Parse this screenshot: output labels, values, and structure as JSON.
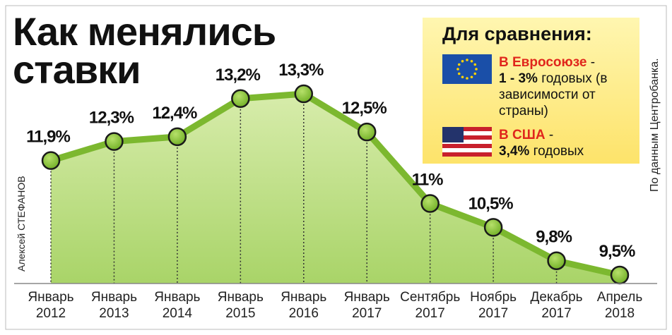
{
  "chart_data": {
    "type": "line",
    "title": "Как менялись ставки",
    "categories": [
      "Январь 2012",
      "Январь 2013",
      "Январь 2014",
      "Январь 2015",
      "Январь 2016",
      "Январь 2017",
      "Сентябрь 2017",
      "Ноябрь 2017",
      "Декабрь 2017",
      "Апрель 2018"
    ],
    "values": [
      11.9,
      12.3,
      12.4,
      13.2,
      13.3,
      12.5,
      11,
      10.5,
      9.8,
      9.5
    ],
    "value_labels": [
      "11,9%",
      "12,3%",
      "12,4%",
      "13,2%",
      "13,3%",
      "12,5%",
      "11%",
      "10,5%",
      "9,8%",
      "9,5%"
    ],
    "color": "#7cb82f"
  },
  "sidebar": {
    "title": "Для сравнения:",
    "items": [
      {
        "region": "В Евросоюзе",
        "dash": "-",
        "rate": "1 - 3%",
        "note": "годовых (в зависимости от страны)"
      },
      {
        "region": "В США",
        "dash": "-",
        "rate": "3,4%",
        "note": "годовых"
      }
    ]
  },
  "credits": {
    "author": "Алексей СТЕФАНОВ",
    "source": "По данным Центробанка."
  }
}
